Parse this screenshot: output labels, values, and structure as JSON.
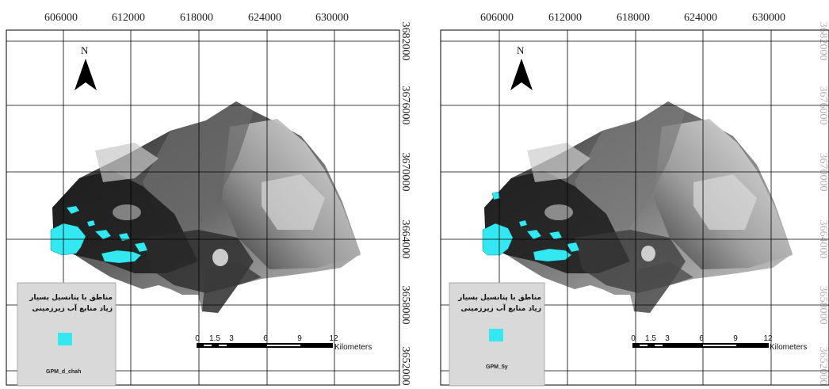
{
  "maps": [
    {
      "id": "left",
      "x_ticks": [
        "606000",
        "612000",
        "618000",
        "624000",
        "630000"
      ],
      "y_ticks": [
        "3682000",
        "3676000",
        "3670000",
        "3664000",
        "3658000",
        "3652000"
      ],
      "north_label": "N",
      "legend": {
        "title_line1": "مناطق با پتانسیل بسیار",
        "title_line2": "زیاد منابع آب زیرزمینی",
        "swatch_color": "#33e8f0",
        "layer_name": "GPM_d_chah"
      },
      "scale_bar": {
        "labels": [
          "0",
          "1.5",
          "3",
          "6",
          "9",
          "12"
        ],
        "unit": "Kilometers"
      }
    },
    {
      "id": "right",
      "x_ticks": [
        "606000",
        "612000",
        "618000",
        "624000",
        "630000"
      ],
      "y_ticks": [
        "3682000",
        "3676000",
        "3670000",
        "3664000",
        "3658000",
        "3652000"
      ],
      "north_label": "N",
      "legend": {
        "title_line1": "مناطق با پتانسیل بسیار",
        "title_line2": "زیاد منابع آب زیرزمینی",
        "swatch_color": "#33e8f0",
        "layer_name": "GPM_5y"
      },
      "scale_bar": {
        "labels": [
          "0",
          "1.5",
          "3",
          "6",
          "9",
          "12"
        ],
        "unit": "Kilometers"
      }
    }
  ],
  "colors": {
    "highlight": "#33e8f0",
    "legend_background": "#d9d9d9",
    "grid": "#000000"
  }
}
